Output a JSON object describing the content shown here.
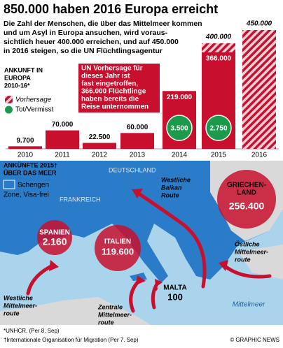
{
  "title": "850.000 haben 2016 Europa erreicht",
  "intro": [
    "Die Zahl der Menschen, die über das Mittelmeer kommen",
    "und um Asyl in Europa ansuchen, wird voraus-",
    "sichtlich heuer 400.000 erreichen, und auf 450.000",
    "in 2016 steigen, so die UN Flüchtlingsagentur"
  ],
  "chart_data": {
    "type": "bar",
    "legend_title": [
      "ANKUNFT IN",
      "EUROPA",
      "2010-16*"
    ],
    "categories": [
      "2010",
      "2011",
      "2012",
      "2013",
      "2014",
      "2015",
      "2016"
    ],
    "series": [
      {
        "color": "#c8102e",
        "values": [
          9700,
          70000,
          22500,
          60000,
          219000,
          366000,
          null
        ],
        "value_labels": [
          "9.700",
          "70.000",
          "22.500",
          "60.000",
          "219.000",
          "366.000",
          null
        ]
      },
      {
        "name": "Vorhersage",
        "color": "#c8102e",
        "pattern": "hatch",
        "values": [
          null,
          null,
          null,
          null,
          null,
          400000,
          450000
        ],
        "value_labels": [
          null,
          null,
          null,
          null,
          null,
          "400.000",
          "450.000"
        ]
      },
      {
        "name": "Tot/Vermisst",
        "color": "#1a9a4a",
        "values": [
          null,
          null,
          null,
          null,
          3500,
          2750,
          null
        ],
        "value_labels": [
          null,
          null,
          null,
          null,
          "3.500",
          "2.750",
          null
        ]
      }
    ],
    "ylim": [
      0,
      450000
    ],
    "annotation": [
      "UN Vorhersage für",
      "dieses Jahr ist",
      "fast eingetroffen,",
      "366.000 Flüchtlinge",
      "haben bereits die",
      "Reise unternommen"
    ]
  },
  "map": {
    "title": [
      "ANKÜNFTE 2015†",
      "ÜBER DAS MEER"
    ],
    "legend": [
      "Schengen",
      "Zone, Visa-frei"
    ],
    "countries": [
      "DEUTSCHLAND",
      "FRANKREICH"
    ],
    "routes": {
      "balkan": [
        "Westliche",
        "Balkan",
        "Route"
      ],
      "east": [
        "Östliche",
        "Mittelmeer-",
        "route"
      ],
      "west": [
        "Westliche",
        "Mittelmeer-",
        "route"
      ],
      "central": [
        "Zentrale",
        "Mittelmeer-",
        "route"
      ]
    },
    "greece": {
      "label": [
        "GRIECHEN-",
        "LAND"
      ],
      "value": "256.400"
    },
    "spain": {
      "label": "SPANIEN",
      "value": "2.160"
    },
    "italy": {
      "label": "ITALIEN",
      "value": "119.600"
    },
    "malta": {
      "label": "MALTA",
      "value": "100"
    },
    "sea": "Mittelmeer"
  },
  "footer": {
    "notes": [
      "*UNHCR, (Per 8. Sep)",
      "†Internationale Organisation für Migration (Per 7. Sep)"
    ],
    "credit": "© GRAPHIC NEWS"
  }
}
